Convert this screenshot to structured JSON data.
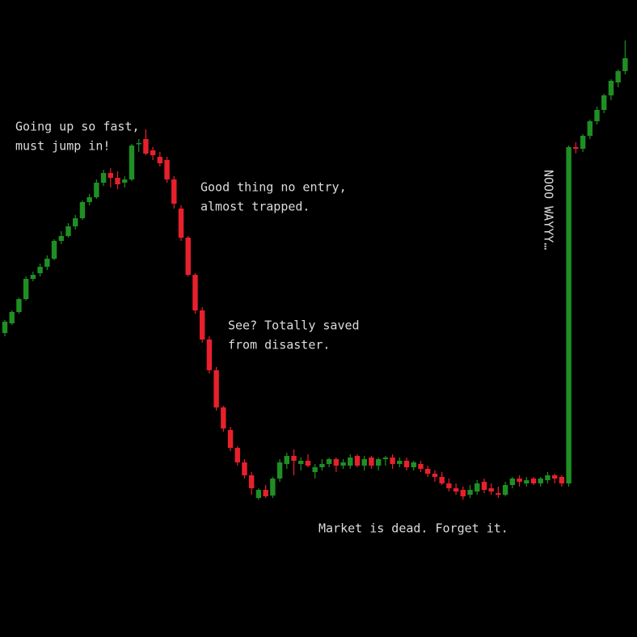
{
  "chart_data": {
    "type": "candlestick",
    "ylim": [
      0,
      788
    ],
    "up_color": "#1f8f24",
    "down_color": "#e8202c",
    "open": [
      376,
      388,
      402,
      418,
      443,
      450,
      458,
      468,
      490,
      496,
      508,
      518,
      538,
      544,
      562,
      574,
      568,
      562,
      566,
      610,
      616,
      602,
      594,
      590,
      566,
      530,
      494,
      448,
      404,
      368,
      330,
      284,
      256,
      234,
      216,
      200,
      172,
      182,
      175,
      196,
      214,
      224,
      214,
      218,
      204,
      210,
      214,
      220,
      212,
      212,
      224,
      212,
      222,
      212,
      220,
      222,
      214,
      218,
      210,
      214,
      208,
      202,
      198,
      190,
      184,
      182,
      176,
      180,
      192,
      184,
      178,
      176,
      188,
      196,
      190,
      196,
      190,
      194,
      200,
      198,
      190,
      606,
      604,
      620,
      638,
      652,
      670,
      686,
      700
    ],
    "high": [
      392,
      404,
      420,
      446,
      452,
      462,
      472,
      492,
      502,
      512,
      522,
      540,
      548,
      566,
      578,
      580,
      576,
      570,
      610,
      616,
      628,
      606,
      600,
      594,
      570,
      534,
      496,
      450,
      408,
      372,
      334,
      286,
      260,
      236,
      220,
      204,
      184,
      188,
      198,
      220,
      228,
      232,
      222,
      226,
      214,
      220,
      222,
      222,
      220,
      226,
      226,
      224,
      224,
      222,
      224,
      226,
      222,
      222,
      218,
      218,
      212,
      206,
      204,
      196,
      190,
      186,
      188,
      194,
      196,
      190,
      186,
      192,
      198,
      200,
      198,
      198,
      198,
      204,
      202,
      200,
      608,
      612,
      622,
      640,
      656,
      672,
      690,
      702,
      738
    ],
    "low": [
      372,
      386,
      400,
      416,
      440,
      446,
      454,
      466,
      486,
      494,
      504,
      516,
      534,
      542,
      558,
      556,
      554,
      556,
      564,
      600,
      596,
      590,
      582,
      562,
      530,
      490,
      446,
      400,
      364,
      326,
      280,
      254,
      230,
      212,
      196,
      176,
      170,
      172,
      172,
      192,
      208,
      200,
      206,
      210,
      196,
      206,
      210,
      204,
      208,
      208,
      210,
      206,
      208,
      206,
      212,
      208,
      210,
      206,
      206,
      204,
      198,
      192,
      188,
      180,
      176,
      170,
      172,
      176,
      178,
      176,
      172,
      174,
      184,
      186,
      186,
      188,
      186,
      190,
      190,
      186,
      186,
      598,
      600,
      616,
      634,
      648,
      664,
      680,
      696
    ],
    "close": [
      390,
      402,
      418,
      443,
      448,
      458,
      468,
      490,
      496,
      508,
      518,
      538,
      544,
      562,
      574,
      568,
      560,
      566,
      608,
      611,
      598,
      596,
      586,
      566,
      536,
      494,
      448,
      404,
      368,
      330,
      284,
      258,
      234,
      216,
      200,
      184,
      182,
      174,
      196,
      216,
      224,
      218,
      218,
      212,
      210,
      214,
      220,
      212,
      216,
      222,
      212,
      220,
      212,
      220,
      222,
      214,
      218,
      210,
      216,
      208,
      202,
      198,
      190,
      184,
      180,
      174,
      182,
      190,
      182,
      180,
      176,
      188,
      196,
      192,
      194,
      190,
      196,
      200,
      196,
      190,
      606,
      604,
      620,
      638,
      652,
      670,
      688,
      700,
      716
    ],
    "annotations": [
      {
        "lines": [
          "Going up so fast,",
          "must jump in!"
        ]
      },
      {
        "lines": [
          "Good thing no entry,",
          "almost trapped."
        ]
      },
      {
        "lines": [
          "See? Totally saved",
          "from disaster."
        ]
      },
      {
        "lines": [
          "Market is dead. Forget it."
        ]
      },
      {
        "lines": [
          "NOOO WAYYY…"
        ]
      }
    ]
  }
}
